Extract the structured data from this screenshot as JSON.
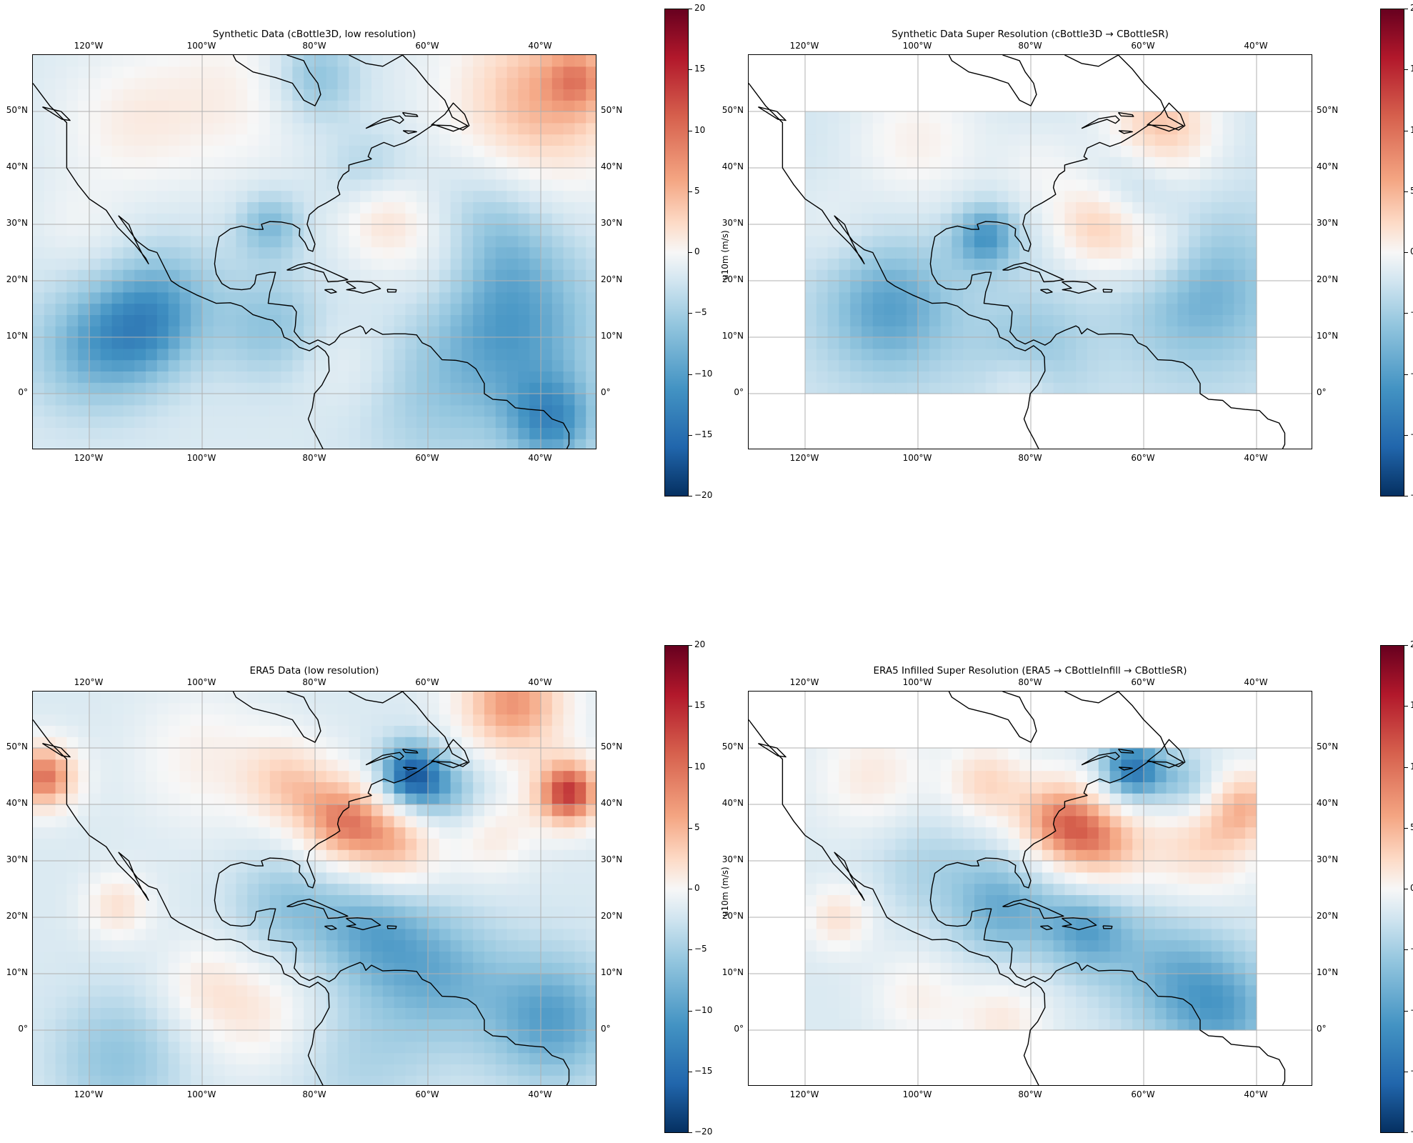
{
  "panels": [
    {
      "title": "Synthetic Data (cBottle3D, low resolution)",
      "field": "synthetic_low",
      "colorbar_label": "u10m (m/s)"
    },
    {
      "title": "Synthetic Data Super Resolution (cBottle3D → CBottleSR)",
      "field": "synthetic_sr",
      "colorbar_label": "u10m (m/s)"
    },
    {
      "title": "ERA5 Data (low resolution)",
      "field": "era5_low",
      "colorbar_label": "u10m (m/s)"
    },
    {
      "title": "ERA5 Infilled Super Resolution (ERA5 → CBottleInfill → CBottleSR)",
      "field": "era5_sr",
      "colorbar_label": "u10m (m/s)"
    }
  ],
  "map_extent": {
    "lon_min": -130,
    "lon_max": -30,
    "lat_min": -10,
    "lat_max": 60
  },
  "sr_region": {
    "lon_min": -120,
    "lon_max": -40,
    "lat_min": 0,
    "lat_max": 50
  },
  "lon_ticks": [
    {
      "value": -120,
      "label": "120°W"
    },
    {
      "value": -100,
      "label": "100°W"
    },
    {
      "value": -80,
      "label": "80°W"
    },
    {
      "value": -60,
      "label": "60°W"
    },
    {
      "value": -40,
      "label": "40°W"
    }
  ],
  "lat_ticks": [
    {
      "value": 50,
      "label": "50°N"
    },
    {
      "value": 40,
      "label": "40°N"
    },
    {
      "value": 30,
      "label": "30°N"
    },
    {
      "value": 20,
      "label": "20°N"
    },
    {
      "value": 10,
      "label": "10°N"
    },
    {
      "value": 0,
      "label": "0°"
    }
  ],
  "colorbar": {
    "min": -20,
    "max": 20,
    "ticks": [
      20,
      15,
      10,
      5,
      0,
      -5,
      -10,
      -15,
      -20
    ],
    "tick_labels": [
      "20",
      "15",
      "10",
      "5",
      "0",
      "−5",
      "−10",
      "−15",
      "−20"
    ],
    "colormap": "RdBu_r",
    "colors": [
      "#67001f",
      "#b2182b",
      "#d6604d",
      "#f4a582",
      "#fddbc7",
      "#f7f7f7",
      "#d1e5f0",
      "#92c5de",
      "#4393c3",
      "#2166ac",
      "#053061"
    ]
  },
  "gridlines": true
}
